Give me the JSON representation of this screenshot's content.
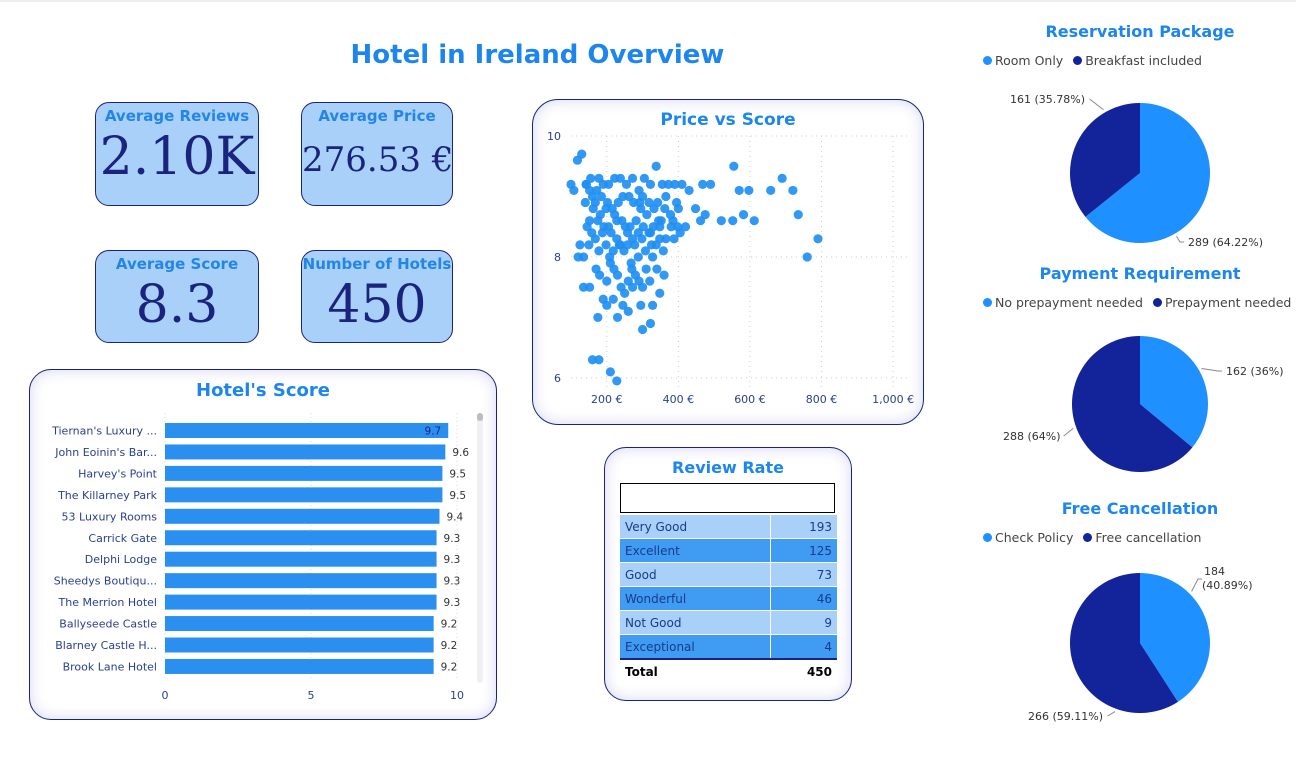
{
  "page": {
    "title": "Hotel in Ireland Overview"
  },
  "colors": {
    "accent": "#1c86ee",
    "dark": "#1a237e",
    "bar": "#2b8ff0",
    "pieLight": "#1e90ff",
    "pieDark": "#13239a",
    "kpiBg": "#a9d0f8"
  },
  "kpis": [
    {
      "label": "Average Reviews",
      "value": "2.10K"
    },
    {
      "label": "Average Price",
      "value": "276.53 €"
    },
    {
      "label": "Average Score",
      "value": "8.3"
    },
    {
      "label": "Number of Hotels",
      "value": "450"
    }
  ],
  "review_rate": {
    "title": "Review Rate",
    "rows": [
      {
        "label": "Very Good",
        "value": "193"
      },
      {
        "label": "Excellent",
        "value": "125"
      },
      {
        "label": "Good",
        "value": "73"
      },
      {
        "label": "Wonderful",
        "value": "46"
      },
      {
        "label": "Not Good",
        "value": "9"
      },
      {
        "label": "Exceptional",
        "value": "4"
      }
    ],
    "total_label": "Total",
    "total_value": "450"
  },
  "right_panel": {
    "reservation": {
      "title": "Reservation Package",
      "legend": [
        "Room Only",
        "Breakfast included"
      ]
    },
    "payment": {
      "title": "Payment Requirement",
      "legend": [
        "No prepayment needed",
        "Prepayment needed"
      ]
    },
    "cancellation": {
      "title": "Free Cancellation",
      "legend": [
        "Check Policy",
        "Free cancellation"
      ]
    }
  },
  "chart_data": [
    {
      "type": "bar",
      "title": "Hotel's Score",
      "orientation": "horizontal",
      "categories": [
        "Tiernan's Luxury ...",
        "John Eoinin's Bar...",
        "Harvey's Point",
        "The Killarney Park",
        "53 Luxury Rooms",
        "Carrick Gate",
        "Delphi Lodge",
        "Sheedys Boutiqu...",
        "The Merrion Hotel",
        "Ballyseede Castle",
        "Blarney Castle H...",
        "Brook Lane Hotel"
      ],
      "values": [
        9.7,
        9.6,
        9.5,
        9.5,
        9.4,
        9.3,
        9.3,
        9.3,
        9.3,
        9.2,
        9.2,
        9.2
      ],
      "value_labels": [
        "9.7",
        "9.6",
        "9.5",
        "9.5",
        "9.4",
        "9.3",
        "9.3",
        "9.3",
        "9.3",
        "9.2",
        "9.2",
        "9.2"
      ],
      "xlim": [
        0,
        10
      ],
      "xticks": [
        "0",
        "5",
        "10"
      ]
    },
    {
      "type": "scatter",
      "title": "Price vs Score",
      "xlim": [
        100,
        1050
      ],
      "ylim": [
        5.8,
        10
      ],
      "xticks": [
        {
          "v": 200,
          "t": "200 €"
        },
        {
          "v": 400,
          "t": "400 €"
        },
        {
          "v": 600,
          "t": "600 €"
        },
        {
          "v": 800,
          "t": "800 €"
        },
        {
          "v": 1000,
          "t": "1,000 €"
        }
      ],
      "yticks": [
        {
          "v": 10,
          "t": "10"
        },
        {
          "v": 8,
          "t": "8"
        },
        {
          "v": 6,
          "t": "6"
        }
      ],
      "grid": true,
      "points": [
        [
          108,
          9.1
        ],
        [
          118,
          9.6
        ],
        [
          130,
          9.7
        ],
        [
          100,
          9.2
        ],
        [
          143,
          9.2
        ],
        [
          155,
          9.3
        ],
        [
          160,
          9.0
        ],
        [
          178,
          9.3
        ],
        [
          190,
          9.2
        ],
        [
          205,
          9.2
        ],
        [
          222,
          9.3
        ],
        [
          238,
          9.3
        ],
        [
          255,
          9.2
        ],
        [
          272,
          9.3
        ],
        [
          290,
          9.1
        ],
        [
          305,
          9.3
        ],
        [
          322,
          9.2
        ],
        [
          338,
          9.5
        ],
        [
          355,
          9.2
        ],
        [
          372,
          9.2
        ],
        [
          390,
          9.2
        ],
        [
          410,
          9.2
        ],
        [
          430,
          9.1
        ],
        [
          468,
          9.2
        ],
        [
          490,
          9.2
        ],
        [
          555,
          9.5
        ],
        [
          570,
          9.1
        ],
        [
          597,
          9.1
        ],
        [
          658,
          9.1
        ],
        [
          690,
          9.3
        ],
        [
          720,
          9.1
        ],
        [
          142,
          9.2
        ],
        [
          152,
          9.1
        ],
        [
          162,
          8.8
        ],
        [
          172,
          9.1
        ],
        [
          182,
          8.7
        ],
        [
          192,
          8.5
        ],
        [
          202,
          8.9
        ],
        [
          212,
          8.4
        ],
        [
          222,
          8.7
        ],
        [
          232,
          8.9
        ],
        [
          242,
          8.6
        ],
        [
          252,
          8.5
        ],
        [
          262,
          9.0
        ],
        [
          272,
          8.3
        ],
        [
          282,
          8.6
        ],
        [
          292,
          8.9
        ],
        [
          302,
          8.5
        ],
        [
          312,
          8.7
        ],
        [
          322,
          8.4
        ],
        [
          332,
          8.8
        ],
        [
          342,
          8.9
        ],
        [
          352,
          8.6
        ],
        [
          362,
          8.8
        ],
        [
          380,
          8.5
        ],
        [
          400,
          8.8
        ],
        [
          420,
          8.5
        ],
        [
          448,
          8.8
        ],
        [
          462,
          8.6
        ],
        [
          475,
          8.7
        ],
        [
          520,
          8.6
        ],
        [
          552,
          8.6
        ],
        [
          582,
          8.7
        ],
        [
          612,
          8.6
        ],
        [
          735,
          8.7
        ],
        [
          158,
          8.4
        ],
        [
          168,
          8.3
        ],
        [
          178,
          8.1
        ],
        [
          188,
          8.4
        ],
        [
          198,
          8.2
        ],
        [
          208,
          8.0
        ],
        [
          218,
          8.1
        ],
        [
          228,
          8.3
        ],
        [
          238,
          8.2
        ],
        [
          248,
          8.1
        ],
        [
          258,
          8.4
        ],
        [
          268,
          7.9
        ],
        [
          278,
          8.2
        ],
        [
          288,
          8.0
        ],
        [
          298,
          8.3
        ],
        [
          308,
          8.1
        ],
        [
          318,
          8.4
        ],
        [
          328,
          8.0
        ],
        [
          338,
          8.2
        ],
        [
          348,
          8.3
        ],
        [
          358,
          8.1
        ],
        [
          388,
          8.3
        ],
        [
          150,
          8.2
        ],
        [
          145,
          8.5
        ],
        [
          135,
          8.0
        ],
        [
          125,
          8.2
        ],
        [
          120,
          8.0
        ],
        [
          170,
          7.8
        ],
        [
          180,
          7.7
        ],
        [
          200,
          7.6
        ],
        [
          220,
          7.8
        ],
        [
          240,
          7.5
        ],
        [
          260,
          7.6
        ],
        [
          280,
          7.7
        ],
        [
          300,
          7.5
        ],
        [
          320,
          7.6
        ],
        [
          340,
          7.8
        ],
        [
          360,
          7.7
        ],
        [
          210,
          7.9
        ],
        [
          230,
          7.7
        ],
        [
          250,
          7.4
        ],
        [
          270,
          7.8
        ],
        [
          290,
          7.6
        ],
        [
          310,
          7.8
        ],
        [
          135,
          7.5
        ],
        [
          152,
          7.5
        ],
        [
          190,
          7.3
        ],
        [
          218,
          7.3
        ],
        [
          245,
          7.2
        ],
        [
          272,
          7.5
        ],
        [
          295,
          7.2
        ],
        [
          328,
          7.2
        ],
        [
          348,
          7.4
        ],
        [
          175,
          7.0
        ],
        [
          200,
          7.2
        ],
        [
          230,
          7.0
        ],
        [
          260,
          7.1
        ],
        [
          300,
          6.8
        ],
        [
          322,
          6.9
        ],
        [
          160,
          6.3
        ],
        [
          178,
          6.3
        ],
        [
          210,
          6.1
        ],
        [
          228,
          5.95
        ],
        [
          760,
          8.0
        ],
        [
          790,
          8.3
        ],
        [
          140,
          8.9
        ],
        [
          185,
          9.0
        ],
        [
          215,
          8.8
        ],
        [
          245,
          9.0
        ],
        [
          275,
          8.9
        ],
        [
          300,
          9.0
        ],
        [
          330,
          8.5
        ],
        [
          365,
          9.0
        ],
        [
          395,
          8.9
        ],
        [
          175,
          8.6
        ],
        [
          205,
          8.5
        ],
        [
          235,
          8.2
        ],
        [
          265,
          8.5
        ],
        [
          295,
          8.8
        ],
        [
          325,
          8.2
        ],
        [
          345,
          8.6
        ],
        [
          365,
          8.3
        ],
        [
          385,
          8.6
        ],
        [
          405,
          8.4
        ],
        [
          152,
          8.6
        ],
        [
          168,
          8.9
        ],
        [
          198,
          8.8
        ],
        [
          228,
          8.6
        ],
        [
          258,
          8.2
        ],
        [
          288,
          8.4
        ],
        [
          318,
          8.9
        ],
        [
          348,
          8.5
        ],
        [
          378,
          8.7
        ],
        [
          398,
          8.5
        ]
      ]
    },
    {
      "type": "pie",
      "title": "Reservation Package",
      "labels": [
        "Room Only",
        "Breakfast included"
      ],
      "values": [
        289,
        161
      ],
      "data_labels": [
        "289 (64.22%)",
        "161 (35.78%)"
      ]
    },
    {
      "type": "pie",
      "title": "Payment Requirement",
      "labels": [
        "No prepayment needed",
        "Prepayment needed"
      ],
      "values": [
        162,
        288
      ],
      "data_labels": [
        "162 (36%)",
        "288 (64%)"
      ]
    },
    {
      "type": "pie",
      "title": "Free Cancellation",
      "labels": [
        "Check Policy",
        "Free cancellation"
      ],
      "values": [
        184,
        266
      ],
      "data_labels": [
        "184 (40.89%)",
        "266 (59.11%)"
      ]
    }
  ]
}
